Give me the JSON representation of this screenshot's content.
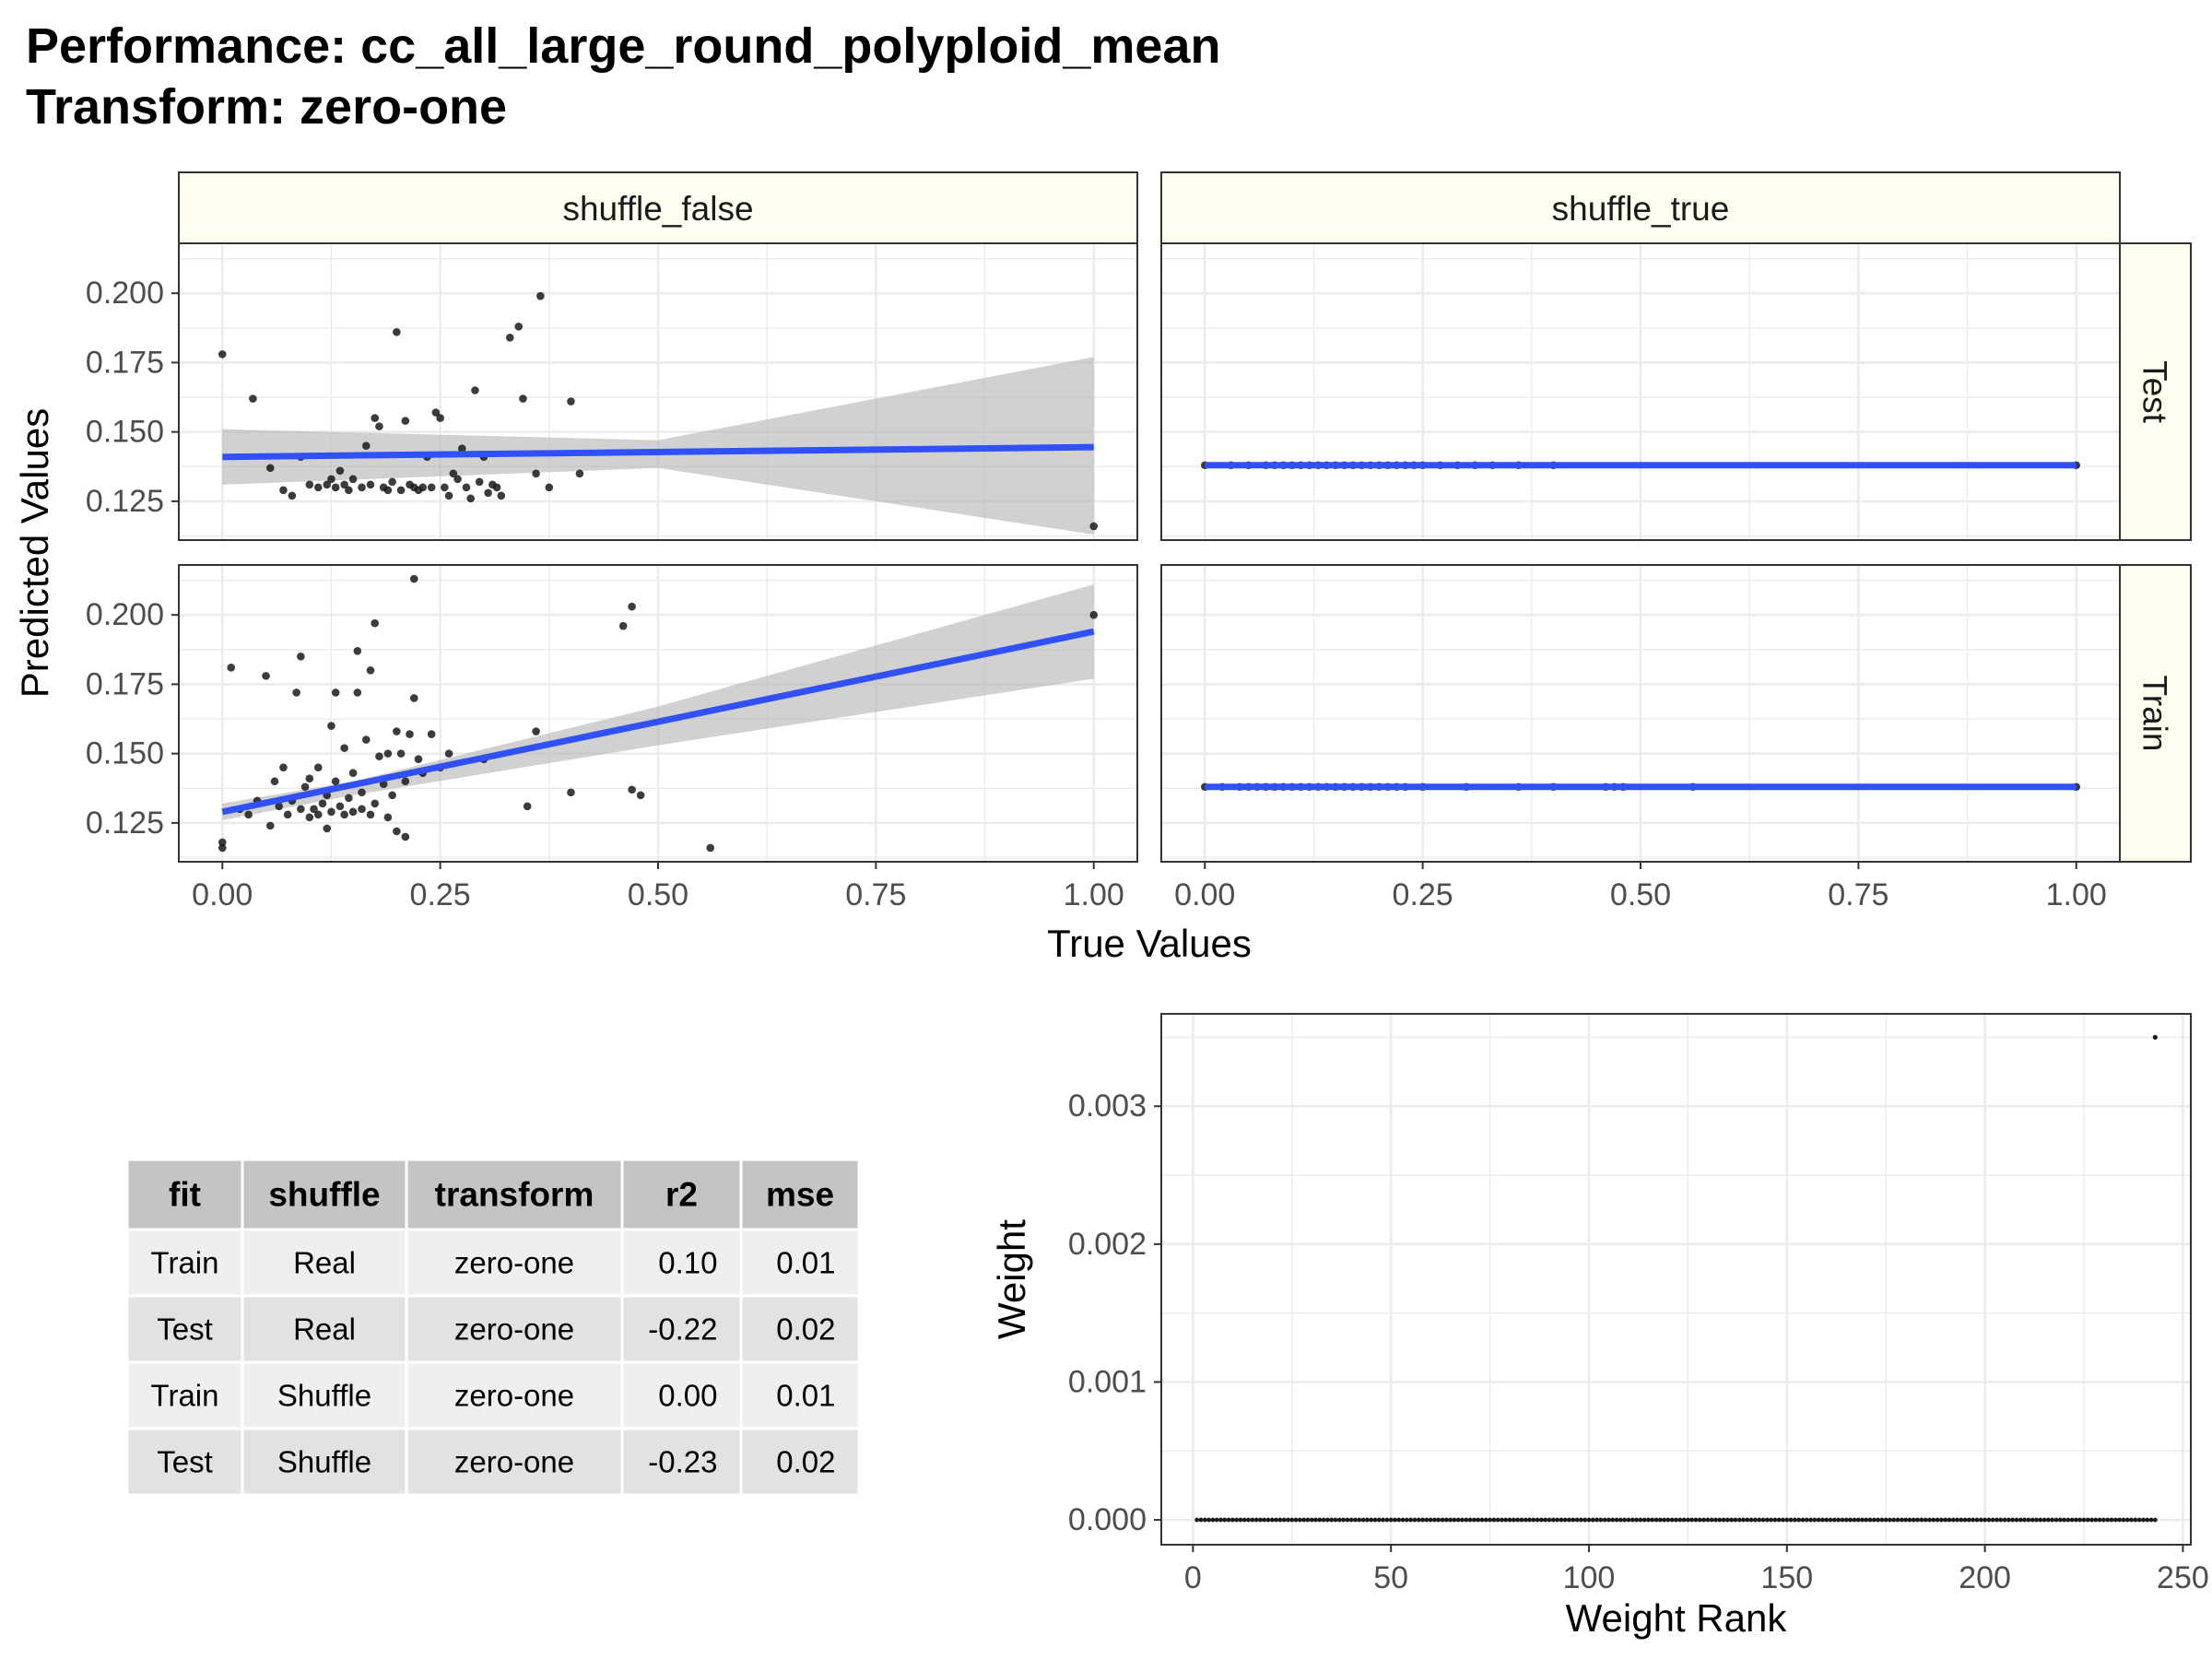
{
  "title": {
    "line1": "Performance: cc_all_large_round_polyploid_mean",
    "line2": "Transform: zero-one"
  },
  "colors": {
    "strip_fill": "#FFFFF0",
    "fit_line": "#3050F8",
    "ribbon": "#B3B3B3",
    "point": "#1A1A1A",
    "grid": "#EBEBEB",
    "table_header": "#C4C4C4",
    "table_row_odd": "#EFEFEF",
    "table_row_even": "#E2E2E2"
  },
  "chart_data": [
    {
      "type": "scatter",
      "subtype": "faceted scatter with linear fit and confidence band",
      "xlabel": "True Values",
      "ylabel": "Predicted Values",
      "xlim": [
        -0.05,
        1.05
      ],
      "ylim": [
        0.111,
        0.218
      ],
      "x_ticks": [
        0.0,
        0.25,
        0.5,
        0.75,
        1.0
      ],
      "x_tick_labels": [
        "0.00",
        "0.25",
        "0.50",
        "0.75",
        "1.00"
      ],
      "y_ticks": [
        0.125,
        0.15,
        0.175,
        0.2
      ],
      "y_tick_labels": [
        "0.125",
        "0.150",
        "0.175",
        "0.200"
      ],
      "grid": true,
      "facet_columns": [
        "shuffle_false",
        "shuffle_true"
      ],
      "facet_rows": [
        "Test",
        "Train"
      ],
      "panels": [
        {
          "column": "shuffle_false",
          "row": "Test",
          "fit": {
            "x": [
              0.0,
              1.0
            ],
            "y": [
              0.141,
              0.1445
            ]
          },
          "band": {
            "x": [
              0.0,
              0.5,
              1.0
            ],
            "lower": [
              0.131,
              0.137,
              0.113
            ],
            "upper": [
              0.151,
              0.147,
              0.177
            ]
          },
          "points": [
            [
              0.0,
              0.178
            ],
            [
              0.035,
              0.162
            ],
            [
              0.055,
              0.137
            ],
            [
              0.07,
              0.129
            ],
            [
              0.08,
              0.127
            ],
            [
              0.09,
              0.141
            ],
            [
              0.1,
              0.131
            ],
            [
              0.11,
              0.13
            ],
            [
              0.12,
              0.131
            ],
            [
              0.125,
              0.133
            ],
            [
              0.13,
              0.13
            ],
            [
              0.135,
              0.136
            ],
            [
              0.14,
              0.131
            ],
            [
              0.145,
              0.129
            ],
            [
              0.15,
              0.133
            ],
            [
              0.16,
              0.13
            ],
            [
              0.165,
              0.145
            ],
            [
              0.17,
              0.131
            ],
            [
              0.175,
              0.155
            ],
            [
              0.18,
              0.152
            ],
            [
              0.185,
              0.13
            ],
            [
              0.19,
              0.129
            ],
            [
              0.195,
              0.132
            ],
            [
              0.2,
              0.186
            ],
            [
              0.205,
              0.129
            ],
            [
              0.21,
              0.154
            ],
            [
              0.215,
              0.131
            ],
            [
              0.22,
              0.13
            ],
            [
              0.225,
              0.129
            ],
            [
              0.23,
              0.13
            ],
            [
              0.235,
              0.141
            ],
            [
              0.24,
              0.13
            ],
            [
              0.245,
              0.157
            ],
            [
              0.25,
              0.155
            ],
            [
              0.255,
              0.13
            ],
            [
              0.26,
              0.127
            ],
            [
              0.265,
              0.135
            ],
            [
              0.27,
              0.133
            ],
            [
              0.275,
              0.144
            ],
            [
              0.28,
              0.13
            ],
            [
              0.285,
              0.126
            ],
            [
              0.29,
              0.165
            ],
            [
              0.295,
              0.132
            ],
            [
              0.3,
              0.141
            ],
            [
              0.305,
              0.128
            ],
            [
              0.31,
              0.131
            ],
            [
              0.315,
              0.13
            ],
            [
              0.32,
              0.127
            ],
            [
              0.33,
              0.184
            ],
            [
              0.34,
              0.188
            ],
            [
              0.345,
              0.162
            ],
            [
              0.36,
              0.135
            ],
            [
              0.365,
              0.199
            ],
            [
              0.375,
              0.13
            ],
            [
              0.4,
              0.161
            ],
            [
              0.41,
              0.135
            ],
            [
              1.0,
              0.116
            ]
          ]
        },
        {
          "column": "shuffle_true",
          "row": "Test",
          "fit": {
            "x": [
              0.0,
              1.0
            ],
            "y": [
              0.138,
              0.138
            ]
          },
          "band": {
            "x": [
              0.0,
              1.0
            ],
            "lower": [
              0.1375,
              0.1375
            ],
            "upper": [
              0.1385,
              0.1385
            ]
          },
          "points": [
            [
              0.0,
              0.138
            ],
            [
              0.03,
              0.138
            ],
            [
              0.05,
              0.138
            ],
            [
              0.07,
              0.138
            ],
            [
              0.08,
              0.138
            ],
            [
              0.09,
              0.138
            ],
            [
              0.1,
              0.138
            ],
            [
              0.11,
              0.138
            ],
            [
              0.12,
              0.138
            ],
            [
              0.13,
              0.138
            ],
            [
              0.14,
              0.138
            ],
            [
              0.15,
              0.138
            ],
            [
              0.16,
              0.138
            ],
            [
              0.17,
              0.138
            ],
            [
              0.18,
              0.138
            ],
            [
              0.19,
              0.138
            ],
            [
              0.2,
              0.138
            ],
            [
              0.21,
              0.138
            ],
            [
              0.22,
              0.138
            ],
            [
              0.23,
              0.138
            ],
            [
              0.24,
              0.138
            ],
            [
              0.25,
              0.138
            ],
            [
              0.27,
              0.138
            ],
            [
              0.29,
              0.138
            ],
            [
              0.31,
              0.138
            ],
            [
              0.33,
              0.138
            ],
            [
              0.36,
              0.138
            ],
            [
              0.4,
              0.138
            ],
            [
              1.0,
              0.138
            ]
          ]
        },
        {
          "column": "shuffle_false",
          "row": "Train",
          "fit": {
            "x": [
              0.0,
              1.0
            ],
            "y": [
              0.129,
              0.194
            ]
          },
          "band": {
            "x": [
              0.0,
              0.15,
              0.5,
              1.0
            ],
            "lower": [
              0.126,
              0.135,
              0.153,
              0.177
            ],
            "upper": [
              0.132,
              0.14,
              0.167,
              0.211
            ]
          },
          "points": [
            [
              0.0,
              0.118
            ],
            [
              0.0,
              0.116
            ],
            [
              0.01,
              0.181
            ],
            [
              0.02,
              0.13
            ],
            [
              0.03,
              0.128
            ],
            [
              0.04,
              0.133
            ],
            [
              0.05,
              0.178
            ],
            [
              0.055,
              0.124
            ],
            [
              0.06,
              0.14
            ],
            [
              0.065,
              0.131
            ],
            [
              0.07,
              0.145
            ],
            [
              0.075,
              0.128
            ],
            [
              0.08,
              0.133
            ],
            [
              0.085,
              0.172
            ],
            [
              0.09,
              0.13
            ],
            [
              0.09,
              0.185
            ],
            [
              0.095,
              0.138
            ],
            [
              0.1,
              0.127
            ],
            [
              0.1,
              0.141
            ],
            [
              0.105,
              0.13
            ],
            [
              0.11,
              0.145
            ],
            [
              0.11,
              0.128
            ],
            [
              0.115,
              0.132
            ],
            [
              0.12,
              0.123
            ],
            [
              0.12,
              0.135
            ],
            [
              0.125,
              0.16
            ],
            [
              0.125,
              0.129
            ],
            [
              0.13,
              0.14
            ],
            [
              0.13,
              0.172
            ],
            [
              0.135,
              0.131
            ],
            [
              0.14,
              0.128
            ],
            [
              0.14,
              0.152
            ],
            [
              0.145,
              0.134
            ],
            [
              0.15,
              0.129
            ],
            [
              0.15,
              0.143
            ],
            [
              0.155,
              0.172
            ],
            [
              0.155,
              0.187
            ],
            [
              0.16,
              0.13
            ],
            [
              0.16,
              0.136
            ],
            [
              0.165,
              0.155
            ],
            [
              0.17,
              0.128
            ],
            [
              0.17,
              0.18
            ],
            [
              0.175,
              0.197
            ],
            [
              0.175,
              0.132
            ],
            [
              0.18,
              0.149
            ],
            [
              0.185,
              0.139
            ],
            [
              0.19,
              0.127
            ],
            [
              0.19,
              0.15
            ],
            [
              0.195,
              0.135
            ],
            [
              0.2,
              0.158
            ],
            [
              0.2,
              0.122
            ],
            [
              0.205,
              0.15
            ],
            [
              0.21,
              0.12
            ],
            [
              0.21,
              0.14
            ],
            [
              0.215,
              0.157
            ],
            [
              0.22,
              0.213
            ],
            [
              0.22,
              0.17
            ],
            [
              0.225,
              0.148
            ],
            [
              0.23,
              0.143
            ],
            [
              0.24,
              0.157
            ],
            [
              0.25,
              0.145
            ],
            [
              0.26,
              0.15
            ],
            [
              0.3,
              0.148
            ],
            [
              0.35,
              0.131
            ],
            [
              0.36,
              0.158
            ],
            [
              0.4,
              0.136
            ],
            [
              0.46,
              0.196
            ],
            [
              0.47,
              0.203
            ],
            [
              0.47,
              0.137
            ],
            [
              0.48,
              0.135
            ],
            [
              0.56,
              0.116
            ],
            [
              1.0,
              0.2
            ]
          ]
        },
        {
          "column": "shuffle_true",
          "row": "Train",
          "fit": {
            "x": [
              0.0,
              1.0
            ],
            "y": [
              0.138,
              0.138
            ]
          },
          "band": {
            "x": [
              0.0,
              1.0
            ],
            "lower": [
              0.1377,
              0.1377
            ],
            "upper": [
              0.1383,
              0.1383
            ]
          },
          "points": [
            [
              0.0,
              0.138
            ],
            [
              0.02,
              0.138
            ],
            [
              0.04,
              0.138
            ],
            [
              0.05,
              0.138
            ],
            [
              0.06,
              0.138
            ],
            [
              0.07,
              0.138
            ],
            [
              0.08,
              0.138
            ],
            [
              0.09,
              0.138
            ],
            [
              0.1,
              0.138
            ],
            [
              0.11,
              0.138
            ],
            [
              0.12,
              0.138
            ],
            [
              0.13,
              0.138
            ],
            [
              0.14,
              0.138
            ],
            [
              0.15,
              0.138
            ],
            [
              0.16,
              0.138
            ],
            [
              0.17,
              0.138
            ],
            [
              0.18,
              0.138
            ],
            [
              0.19,
              0.138
            ],
            [
              0.2,
              0.138
            ],
            [
              0.21,
              0.138
            ],
            [
              0.22,
              0.138
            ],
            [
              0.23,
              0.138
            ],
            [
              0.25,
              0.138
            ],
            [
              0.3,
              0.138
            ],
            [
              0.36,
              0.138
            ],
            [
              0.4,
              0.138
            ],
            [
              0.46,
              0.138
            ],
            [
              0.47,
              0.138
            ],
            [
              0.48,
              0.138
            ],
            [
              0.56,
              0.138
            ],
            [
              1.0,
              0.138
            ]
          ]
        }
      ]
    },
    {
      "type": "scatter",
      "xlabel": "Weight Rank",
      "ylabel": "Weight",
      "xlim": [
        -8,
        252
      ],
      "ylim": [
        -0.00018,
        0.00367
      ],
      "x_ticks": [
        0,
        50,
        100,
        150,
        200,
        250
      ],
      "x_tick_labels": [
        "0",
        "50",
        "100",
        "150",
        "200",
        "250"
      ],
      "y_ticks": [
        0.0,
        0.001,
        0.002,
        0.003
      ],
      "y_tick_labels": [
        "0.000",
        "0.001",
        "0.002",
        "0.003"
      ],
      "grid": true,
      "series": [
        {
          "x_from": 1,
          "x_to": 243,
          "value": 0.0
        },
        {
          "x": [
            243
          ],
          "values": [
            0.0035
          ]
        }
      ]
    },
    {
      "type": "table",
      "columns": [
        "fit",
        "shuffle",
        "transform",
        "r2",
        "mse"
      ],
      "rows": [
        [
          "Train",
          "Real",
          "zero-one",
          "0.10",
          "0.01"
        ],
        [
          "Test",
          "Real",
          "zero-one",
          "-0.22",
          "0.02"
        ],
        [
          "Train",
          "Shuffle",
          "zero-one",
          "0.00",
          "0.01"
        ],
        [
          "Test",
          "Shuffle",
          "zero-one",
          "-0.23",
          "0.02"
        ]
      ]
    }
  ]
}
